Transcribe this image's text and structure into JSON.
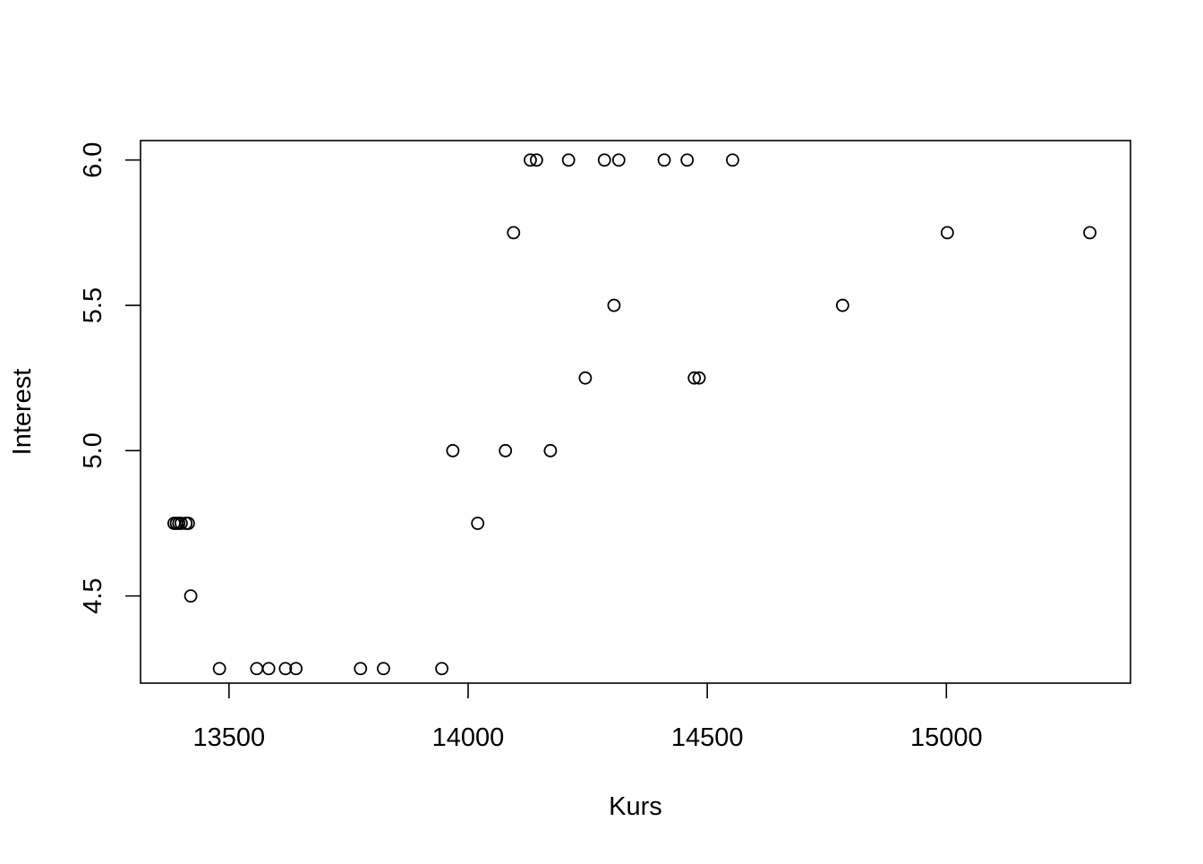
{
  "chart_data": {
    "type": "scatter",
    "title": "",
    "xlabel": "Kurs",
    "ylabel": "Interest",
    "xlim": [
      13315,
      15385
    ],
    "ylim": [
      4.2,
      6.067
    ],
    "x_ticks": [
      13500,
      14000,
      14500,
      15000
    ],
    "x_tick_labels": [
      "13500",
      "14000",
      "14500",
      "15000"
    ],
    "y_ticks": [
      4.5,
      5.0,
      5.5,
      6.0
    ],
    "y_tick_labels": [
      "4.5",
      "5.0",
      "5.5",
      "6.0"
    ],
    "grid": false,
    "legend": "none",
    "marker": "open-circle",
    "marker_color": "#000000",
    "points": [
      {
        "x": 13385,
        "y": 4.75
      },
      {
        "x": 13390,
        "y": 4.75
      },
      {
        "x": 13395,
        "y": 4.75
      },
      {
        "x": 13400,
        "y": 4.75
      },
      {
        "x": 13410,
        "y": 4.75
      },
      {
        "x": 13415,
        "y": 4.75
      },
      {
        "x": 13420,
        "y": 4.5
      },
      {
        "x": 13480,
        "y": 4.25
      },
      {
        "x": 13558,
        "y": 4.25
      },
      {
        "x": 13583,
        "y": 4.25
      },
      {
        "x": 13618,
        "y": 4.25
      },
      {
        "x": 13640,
        "y": 4.25
      },
      {
        "x": 13775,
        "y": 4.25
      },
      {
        "x": 13823,
        "y": 4.25
      },
      {
        "x": 13945,
        "y": 4.25
      },
      {
        "x": 13968,
        "y": 5.0
      },
      {
        "x": 14020,
        "y": 4.75
      },
      {
        "x": 14078,
        "y": 5.0
      },
      {
        "x": 14095,
        "y": 5.75
      },
      {
        "x": 14130,
        "y": 6.0
      },
      {
        "x": 14143,
        "y": 6.0
      },
      {
        "x": 14172,
        "y": 5.0
      },
      {
        "x": 14210,
        "y": 6.0
      },
      {
        "x": 14245,
        "y": 5.25
      },
      {
        "x": 14285,
        "y": 6.0
      },
      {
        "x": 14305,
        "y": 5.5
      },
      {
        "x": 14315,
        "y": 6.0
      },
      {
        "x": 14410,
        "y": 6.0
      },
      {
        "x": 14458,
        "y": 6.0
      },
      {
        "x": 14473,
        "y": 5.25
      },
      {
        "x": 14483,
        "y": 5.25
      },
      {
        "x": 14553,
        "y": 6.0
      },
      {
        "x": 14783,
        "y": 5.5
      },
      {
        "x": 15002,
        "y": 5.75
      },
      {
        "x": 15300,
        "y": 5.75
      }
    ]
  }
}
